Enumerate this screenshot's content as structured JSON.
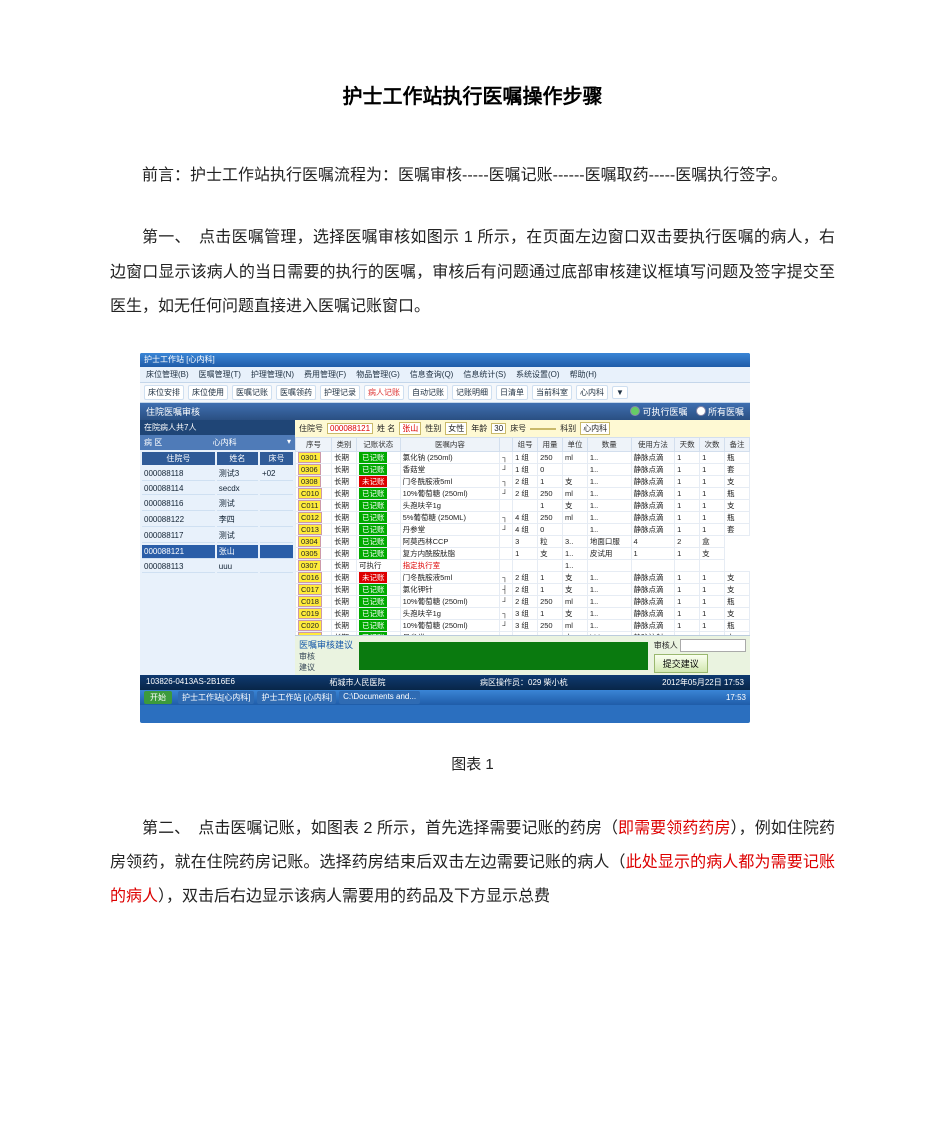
{
  "doc": {
    "title": "护士工作站执行医嘱操作步骤",
    "preface_1": "前言：护士工作站执行医嘱流程为：医嘱审核-----医嘱记账------医嘱取药-----医嘱执行签字。",
    "step1_a": "第一、　点击医嘱管理，选择医嘱审核如图示 1 所示，在页面左边窗口双击要执行医嘱的病人，右边窗口显示该病人的当日需要的执行的医嘱，审核后有问题通过底部审核建议框填写问题及签字提交至医生，如无任何问题直接进入医嘱记账窗口。",
    "caption1": "图表 1",
    "step2_a": "第二、　点击医嘱记账，如图表 2 所示，首先选择需要记账的药房（",
    "step2_r1": "即需要领药药房",
    "step2_b": "），例如住院药房领药，就在住院药房记账。选择药房结束后双击左边需要记账的病人（",
    "step2_r2": "此处显示的病人都为需要记账的病人",
    "step2_c": "），双击后右边显示该病人需要用的药品及下方显示总费"
  },
  "win": {
    "title": "护士工作站 [心内科]",
    "menus": [
      "床位管理(B)",
      "医嘱管理(T)",
      "护理管理(N)",
      "费用管理(F)",
      "物品管理(G)",
      "信息查询(Q)",
      "信息统计(S)",
      "系统设置(O)",
      "帮助(H)"
    ],
    "tools": [
      "床位安排",
      "床位使用",
      "医嘱记账",
      "医嘱领药",
      "护理记录",
      "病人记账",
      "自动记账",
      "记账明细",
      "日清单",
      "当前科室",
      "心内科",
      "▼"
    ],
    "panel_title": "住院医嘱审核",
    "opt1": "可执行医嘱",
    "opt2": "所有医嘱",
    "side_head": "在院病人共7人",
    "side_cols": [
      "住院号",
      "姓名",
      "床号"
    ],
    "patients": [
      [
        "000088118",
        "测试3",
        "+02"
      ],
      [
        "000088114",
        "secdx",
        ""
      ],
      [
        "000088116",
        "测试",
        ""
      ],
      [
        "000088122",
        "李四",
        ""
      ],
      [
        "000088117",
        "测试",
        ""
      ],
      [
        "000088121",
        "张山",
        ""
      ],
      [
        "000088113",
        "uuu",
        ""
      ]
    ],
    "sel_patient_idx": 5,
    "filter": {
      "l_inno": "住院号",
      "v_inno": "000088121",
      "l_name": "姓 名",
      "v_name": "张山",
      "l_sex": "性别",
      "v_sex": "女性",
      "l_age": "年龄",
      "v_age": "30",
      "l_bed": "床号",
      "v_bed": "",
      "l_dept": "科别",
      "v_dept": "心内科"
    },
    "grid_cols": [
      "序号",
      "类别",
      "记账状态",
      "医嘱内容",
      "",
      "组号",
      "用量",
      "单位",
      "数量",
      "使用方法",
      "天数",
      "次数",
      "备注"
    ],
    "orders": [
      [
        "0301",
        "长期",
        "green",
        "氯化钠 (250ml)",
        "┐",
        "1 组",
        "250",
        "ml",
        "1..",
        "静脉点滴",
        "1",
        "1",
        "瓶"
      ],
      [
        "0306",
        "长期",
        "green",
        "香菇堂",
        "┘",
        "1 组",
        "0",
        "",
        "1..",
        "静脉点滴",
        "1",
        "1",
        "套"
      ],
      [
        "0308",
        "长期",
        "red",
        "门冬酰胺液5ml",
        "┐",
        "2 组",
        "1",
        "支",
        "1..",
        "静脉点滴",
        "1",
        "1",
        "支"
      ],
      [
        "C010",
        "长期",
        "green",
        "10%葡萄糖 (250ml)",
        "┘",
        "2 组",
        "250",
        "ml",
        "1..",
        "静脉点滴",
        "1",
        "1",
        "瓶"
      ],
      [
        "C011",
        "长期",
        "green",
        "头孢呋辛1g",
        "",
        "",
        "1",
        "支",
        "1..",
        "静脉点滴",
        "1",
        "1",
        "支"
      ],
      [
        "C012",
        "长期",
        "green",
        "5%葡萄糖 (250ML)",
        "┐",
        "4 组",
        "250",
        "ml",
        "1..",
        "静脉点滴",
        "1",
        "1",
        "瓶"
      ],
      [
        "C013",
        "长期",
        "green",
        "丹参堂",
        "┘",
        "4 组",
        "0",
        "",
        "1..",
        "静脉点滴",
        "1",
        "1",
        "套"
      ],
      [
        "0304",
        "长期",
        "green",
        "阿莫西林CCP",
        "",
        "3",
        "粒",
        "3..",
        "地面口服",
        "4",
        "2",
        "盒"
      ],
      [
        "0305",
        "长期",
        "green",
        "复方内酰胺肽脂",
        "",
        "1",
        "支",
        "1..",
        "皮试用",
        "1",
        "1",
        "支"
      ],
      [
        "0307",
        "长期",
        "可执行",
        "",
        "",
        "",
        "",
        "1..",
        "",
        "",
        "",
        ""
      ],
      [
        "C016",
        "长期",
        "red",
        "门冬酰胺液5ml",
        "┐",
        "2 组",
        "1",
        "支",
        "1..",
        "静脉点滴",
        "1",
        "1",
        "支"
      ],
      [
        "C017",
        "长期",
        "green",
        "氯化钾针",
        "┤",
        "2 组",
        "1",
        "支",
        "1..",
        "静脉点滴",
        "1",
        "1",
        "支"
      ],
      [
        "C018",
        "长期",
        "green",
        "10%葡萄糖 (250ml)",
        "┘",
        "2 组",
        "250",
        "ml",
        "1..",
        "静脉点滴",
        "1",
        "1",
        "瓶"
      ],
      [
        "C019",
        "长期",
        "green",
        "头孢呋辛1g",
        "┐",
        "3 组",
        "1",
        "支",
        "1..",
        "静脉点滴",
        "1",
        "1",
        "支"
      ],
      [
        "C020",
        "长期",
        "green",
        "10%葡萄糖 (250ml)",
        "┘",
        "3 组",
        "250",
        "ml",
        "1..",
        "静脉点滴",
        "1",
        "1",
        "瓶"
      ],
      [
        "C013",
        "长期",
        "green",
        "丹参堂",
        "",
        "",
        "1",
        "支",
        "bid",
        "静脉注射",
        "1",
        "1",
        "支"
      ],
      [
        "C014",
        "长期",
        "green",
        "丹参堂",
        "",
        "",
        "1",
        "支",
        "bid",
        "静脉注射",
        "1",
        "1",
        "支"
      ],
      [
        "C015",
        "长期",
        "green",
        "先锋酶脂肪有磷注射脂",
        "",
        "",
        "1",
        "支",
        "bid",
        "皮试用",
        "1",
        "1",
        "支"
      ],
      [
        "C022",
        "长期",
        "red",
        "10%葡萄糖 (250ml)",
        "┐",
        "4 组",
        "250",
        "ml",
        "1..",
        "静脉点滴",
        "1",
        "1",
        "瓶"
      ]
    ],
    "order_redtext_idx": 9,
    "order_redtext": "指定执行室",
    "sugg_title": "医嘱审核建议",
    "sugg_lbl1": "审核",
    "sugg_lbl2": "建议",
    "auditor_lbl": "审核人",
    "auditor_val": "",
    "sugg_btn": "提交建议",
    "status_host": "103826-0413AS-2B16E6",
    "status_hosp": "柘城市人民医院",
    "status_op": "病区操作员：029 柴小杭",
    "status_time": "2012年05月22日 17:53",
    "task_start": "开始",
    "tasks": [
      "护士工作站[心内科]",
      "护士工作站 [心内科]",
      "C:\\Documents and..."
    ],
    "task_time": "17:53",
    "dept_label": "病 区",
    "dept_value": "心内科"
  }
}
